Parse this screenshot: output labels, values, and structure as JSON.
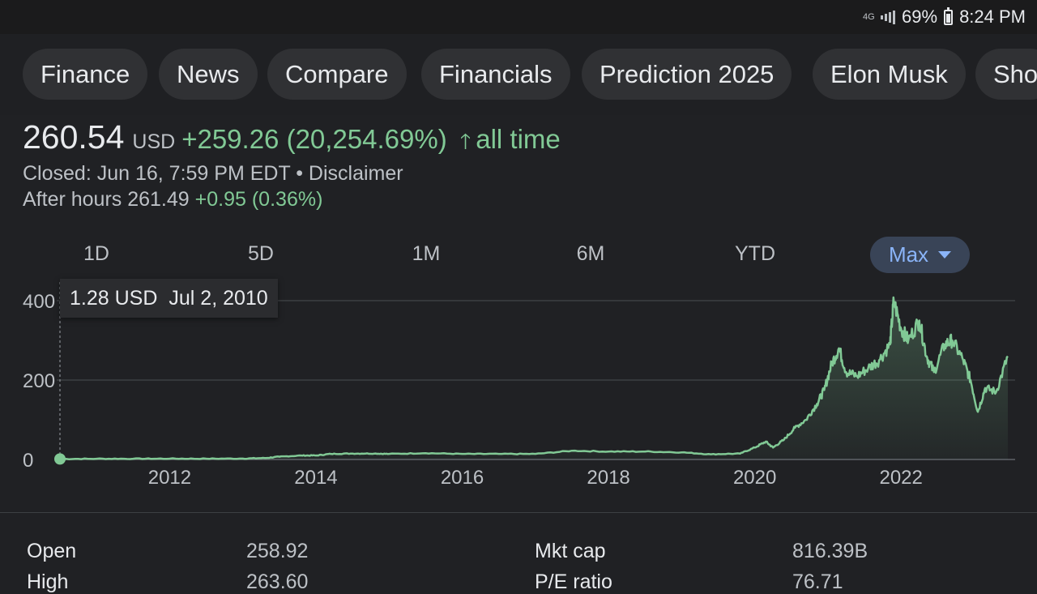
{
  "status_bar": {
    "network_label": "4G",
    "battery": "69%",
    "time": "8:24 PM"
  },
  "chips": [
    "Finance",
    "News",
    "Compare",
    "Financials",
    "Prediction 2025",
    "Elon Musk",
    "Sho"
  ],
  "quote": {
    "price": "260.54",
    "currency": "USD",
    "change": "+259.26 (20,254.69%)",
    "period": "all time",
    "closed_text": "Closed: Jun 16, 7:59 PM EDT • Disclaimer",
    "after_hours_label": "After hours 261.49",
    "after_hours_change": "+0.95 (0.36%)"
  },
  "ranges": [
    "1D",
    "5D",
    "1M",
    "6M",
    "YTD"
  ],
  "range_selected": "Max",
  "tooltip": {
    "value": "1.28 USD",
    "date": "Jul 2, 2010"
  },
  "chart_data": {
    "type": "area",
    "x_ticks": [
      "2012",
      "2014",
      "2016",
      "2018",
      "2020",
      "2022"
    ],
    "y_ticks": [
      "400",
      "200",
      "0"
    ],
    "ylim": [
      0,
      400
    ],
    "xlim": [
      2010.5,
      2023.46
    ],
    "grid": true,
    "line_color": "#81c995",
    "series": [
      {
        "x": [
          2010.5,
          2011.0,
          2011.5,
          2012.0,
          2012.5,
          2013.0,
          2013.3,
          2013.5,
          2013.8,
          2014.0,
          2014.2,
          2014.5,
          2014.8,
          2015.0,
          2015.5,
          2016.0,
          2016.5,
          2017.0,
          2017.5,
          2018.0,
          2018.5,
          2019.0,
          2019.4,
          2019.8,
          2020.0,
          2020.15,
          2020.25,
          2020.4,
          2020.55,
          2020.7,
          2020.85,
          2020.95,
          2021.05,
          2021.15,
          2021.25,
          2021.4,
          2021.55,
          2021.7,
          2021.85,
          2021.9,
          2022.0,
          2022.1,
          2022.25,
          2022.35,
          2022.45,
          2022.6,
          2022.7,
          2022.85,
          2022.95,
          2023.05,
          2023.15,
          2023.3,
          2023.46
        ],
        "y": [
          1.28,
          1.8,
          1.9,
          2.1,
          2.0,
          2.3,
          3.5,
          7,
          10,
          10,
          14,
          15,
          15,
          14,
          16,
          14,
          14,
          14,
          22,
          20,
          20,
          18,
          13,
          15,
          30,
          45,
          30,
          50,
          80,
          100,
          140,
          175,
          240,
          280,
          220,
          210,
          230,
          250,
          290,
          400,
          330,
          300,
          350,
          260,
          220,
          290,
          300,
          250,
          200,
          120,
          180,
          170,
          260
        ]
      }
    ]
  },
  "stats": [
    {
      "label": "Open",
      "value": "258.92"
    },
    {
      "label": "Mkt cap",
      "value": "816.39B"
    },
    {
      "label": "High",
      "value": "263.60"
    },
    {
      "label": "P/E ratio",
      "value": "76.71"
    }
  ]
}
